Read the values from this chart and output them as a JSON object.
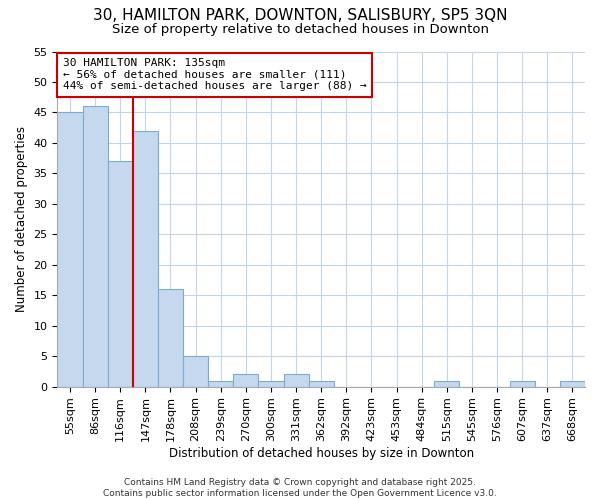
{
  "title": "30, HAMILTON PARK, DOWNTON, SALISBURY, SP5 3QN",
  "subtitle": "Size of property relative to detached houses in Downton",
  "xlabel": "Distribution of detached houses by size in Downton",
  "ylabel": "Number of detached properties",
  "categories": [
    "55sqm",
    "86sqm",
    "116sqm",
    "147sqm",
    "178sqm",
    "208sqm",
    "239sqm",
    "270sqm",
    "300sqm",
    "331sqm",
    "362sqm",
    "392sqm",
    "423sqm",
    "453sqm",
    "484sqm",
    "515sqm",
    "545sqm",
    "576sqm",
    "607sqm",
    "637sqm",
    "668sqm"
  ],
  "values": [
    45,
    46,
    37,
    42,
    16,
    5,
    1,
    2,
    1,
    2,
    1,
    0,
    0,
    0,
    0,
    1,
    0,
    0,
    1,
    0,
    1
  ],
  "bar_color": "#c5d8ee",
  "bar_edge_color": "#7aadd4",
  "grid_color": "#c5d5e8",
  "background_color": "#ffffff",
  "plot_bg_color": "#ffffff",
  "vline_x": 2.5,
  "vline_color": "#cc0000",
  "annotation_text": "30 HAMILTON PARK: 135sqm\n← 56% of detached houses are smaller (111)\n44% of semi-detached houses are larger (88) →",
  "annotation_box_color": "#ffffff",
  "annotation_box_edge": "#cc0000",
  "ylim": [
    0,
    55
  ],
  "yticks": [
    0,
    5,
    10,
    15,
    20,
    25,
    30,
    35,
    40,
    45,
    50,
    55
  ],
  "footer": "Contains HM Land Registry data © Crown copyright and database right 2025.\nContains public sector information licensed under the Open Government Licence v3.0.",
  "title_fontsize": 11,
  "subtitle_fontsize": 9.5,
  "axis_label_fontsize": 8.5,
  "tick_fontsize": 8,
  "annotation_fontsize": 8,
  "footer_fontsize": 6.5
}
